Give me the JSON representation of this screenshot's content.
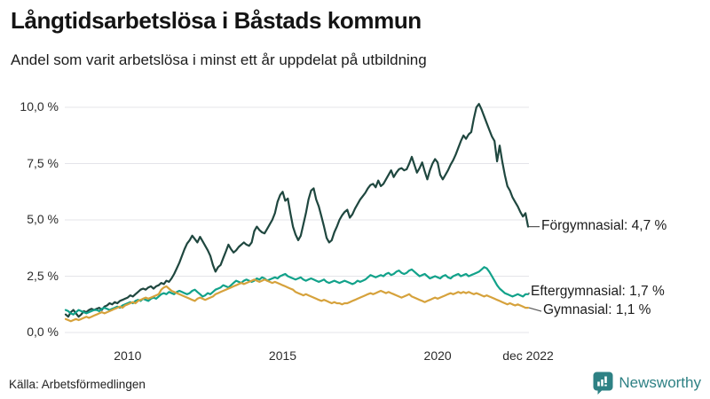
{
  "header": {
    "title": "Långtidsarbetslösa i Båstads kommun",
    "subtitle": "Andel som varit arbetslösa i minst ett år uppdelat på utbildning"
  },
  "footer": {
    "source": "Källa: Arbetsförmedlingen",
    "brand": "Newsworthy",
    "brand_color": "#2e8184"
  },
  "colors": {
    "forgymnasial": "#1f473f",
    "eftergymnasial": "#12a28a",
    "gymnasial": "#d6a23c",
    "grid": "#e4e4e9",
    "connector": "#555555"
  },
  "chart_data": {
    "type": "line",
    "unit": "%",
    "grid": true,
    "x_start": "jan 2008",
    "x_end": "dec 2022",
    "points_per_series": 180,
    "ylim": [
      0,
      10.5
    ],
    "y_axis": {
      "tick_values": [
        0,
        2.5,
        5,
        7.5,
        10
      ],
      "tick_labels": [
        "0,0 %",
        "2,5 %",
        "5,0 %",
        "7,5 %",
        "10,0 %"
      ]
    },
    "x_axis": {
      "ticks": [
        {
          "label": "2010",
          "month_index": 24
        },
        {
          "label": "2015",
          "month_index": 84
        },
        {
          "label": "2020",
          "month_index": 144
        },
        {
          "label": "dec 2022",
          "month_index": 179
        }
      ]
    },
    "series": [
      {
        "name": "Förgymnasial",
        "end_label": "Förgymnasial: 4,7 %",
        "end_value": "4,7 %",
        "color": "#1f473f",
        "values": [
          0.8,
          0.7,
          0.9,
          1.0,
          0.85,
          0.7,
          0.8,
          0.95,
          0.9,
          1.0,
          1.05,
          1.0,
          1.05,
          1.1,
          1.0,
          1.15,
          1.2,
          1.3,
          1.25,
          1.35,
          1.3,
          1.4,
          1.45,
          1.5,
          1.55,
          1.65,
          1.6,
          1.7,
          1.8,
          1.9,
          1.95,
          1.9,
          2.0,
          2.05,
          1.95,
          2.05,
          2.1,
          2.2,
          2.15,
          2.3,
          2.25,
          2.4,
          2.6,
          2.85,
          3.1,
          3.4,
          3.7,
          3.95,
          4.1,
          4.3,
          4.15,
          4.0,
          4.25,
          4.05,
          3.85,
          3.65,
          3.4,
          3.0,
          2.7,
          2.9,
          3.0,
          3.3,
          3.6,
          3.9,
          3.7,
          3.55,
          3.65,
          3.8,
          3.9,
          4.0,
          3.9,
          3.85,
          4.0,
          4.5,
          4.7,
          4.55,
          4.45,
          4.4,
          4.6,
          4.8,
          5.0,
          5.3,
          5.8,
          6.1,
          6.25,
          5.85,
          5.95,
          5.3,
          4.7,
          4.35,
          4.1,
          4.3,
          4.8,
          5.3,
          5.9,
          6.3,
          6.4,
          5.9,
          5.6,
          5.15,
          4.7,
          4.2,
          4.0,
          4.1,
          4.45,
          4.7,
          5.0,
          5.2,
          5.35,
          5.45,
          5.1,
          5.25,
          5.5,
          5.7,
          5.9,
          6.05,
          6.2,
          6.4,
          6.55,
          6.6,
          6.45,
          6.75,
          6.5,
          6.6,
          6.8,
          7.0,
          7.2,
          6.9,
          7.1,
          7.25,
          7.3,
          7.2,
          7.25,
          7.5,
          7.8,
          7.45,
          7.1,
          7.3,
          7.55,
          7.15,
          6.8,
          7.2,
          7.5,
          7.7,
          7.55,
          7.0,
          6.8,
          7.0,
          7.2,
          7.45,
          7.65,
          7.9,
          8.2,
          8.5,
          8.75,
          8.6,
          8.8,
          8.9,
          9.5,
          10.0,
          10.15,
          9.9,
          9.6,
          9.3,
          9.0,
          8.7,
          8.5,
          7.6,
          8.3,
          7.6,
          7.0,
          6.5,
          6.3,
          6.0,
          5.8,
          5.6,
          5.35,
          5.15,
          5.3,
          4.7
        ]
      },
      {
        "name": "Eftergymnasial",
        "end_label": "Eftergymnasial: 1,7 %",
        "end_value": "1,7 %",
        "color": "#12a28a",
        "values": [
          1.0,
          0.95,
          0.85,
          0.8,
          0.9,
          1.0,
          0.95,
          0.9,
          0.85,
          0.9,
          0.95,
          1.0,
          1.0,
          0.95,
          1.05,
          1.1,
          1.05,
          1.0,
          1.05,
          1.1,
          1.15,
          1.1,
          1.2,
          1.25,
          1.3,
          1.35,
          1.3,
          1.4,
          1.45,
          1.4,
          1.5,
          1.45,
          1.4,
          1.5,
          1.55,
          1.5,
          1.6,
          1.7,
          1.75,
          1.7,
          1.8,
          1.75,
          1.7,
          1.8,
          1.85,
          1.8,
          1.75,
          1.7,
          1.75,
          1.85,
          1.9,
          1.8,
          1.7,
          1.6,
          1.65,
          1.75,
          1.7,
          1.8,
          1.9,
          1.95,
          2.0,
          2.1,
          2.05,
          2.0,
          2.1,
          2.2,
          2.3,
          2.25,
          2.2,
          2.3,
          2.35,
          2.3,
          2.25,
          2.3,
          2.4,
          2.35,
          2.45,
          2.4,
          2.3,
          2.35,
          2.4,
          2.45,
          2.4,
          2.5,
          2.55,
          2.6,
          2.5,
          2.45,
          2.4,
          2.35,
          2.4,
          2.45,
          2.35,
          2.3,
          2.35,
          2.4,
          2.35,
          2.3,
          2.25,
          2.3,
          2.35,
          2.25,
          2.2,
          2.25,
          2.3,
          2.25,
          2.2,
          2.25,
          2.3,
          2.25,
          2.2,
          2.15,
          2.2,
          2.3,
          2.25,
          2.3,
          2.35,
          2.45,
          2.55,
          2.5,
          2.45,
          2.5,
          2.55,
          2.5,
          2.6,
          2.65,
          2.55,
          2.6,
          2.7,
          2.75,
          2.65,
          2.6,
          2.65,
          2.75,
          2.8,
          2.7,
          2.6,
          2.5,
          2.55,
          2.6,
          2.5,
          2.4,
          2.45,
          2.5,
          2.45,
          2.4,
          2.5,
          2.55,
          2.45,
          2.4,
          2.5,
          2.55,
          2.6,
          2.5,
          2.55,
          2.6,
          2.5,
          2.55,
          2.6,
          2.65,
          2.7,
          2.8,
          2.9,
          2.85,
          2.7,
          2.5,
          2.3,
          2.1,
          1.95,
          1.85,
          1.75,
          1.7,
          1.65,
          1.6,
          1.65,
          1.7,
          1.65,
          1.6,
          1.7,
          1.7
        ]
      },
      {
        "name": "Gymnasial",
        "end_label": "Gymnasial: 1,1 %",
        "end_value": "1,1 %",
        "color": "#d6a23c",
        "values": [
          0.6,
          0.55,
          0.5,
          0.55,
          0.6,
          0.55,
          0.6,
          0.65,
          0.7,
          0.65,
          0.7,
          0.75,
          0.8,
          0.85,
          0.9,
          0.85,
          0.9,
          0.95,
          1.0,
          1.05,
          1.1,
          1.15,
          1.1,
          1.2,
          1.25,
          1.3,
          1.35,
          1.3,
          1.4,
          1.45,
          1.5,
          1.55,
          1.5,
          1.55,
          1.6,
          1.65,
          1.7,
          1.9,
          2.0,
          2.05,
          1.95,
          1.85,
          1.8,
          1.75,
          1.7,
          1.65,
          1.6,
          1.55,
          1.5,
          1.45,
          1.4,
          1.5,
          1.55,
          1.5,
          1.45,
          1.5,
          1.55,
          1.6,
          1.7,
          1.75,
          1.8,
          1.85,
          1.9,
          1.95,
          2.0,
          2.05,
          2.1,
          2.15,
          2.2,
          2.15,
          2.2,
          2.25,
          2.3,
          2.35,
          2.3,
          2.25,
          2.3,
          2.35,
          2.3,
          2.25,
          2.2,
          2.25,
          2.2,
          2.15,
          2.1,
          2.05,
          2.0,
          1.95,
          1.9,
          1.8,
          1.75,
          1.7,
          1.65,
          1.7,
          1.65,
          1.6,
          1.55,
          1.5,
          1.45,
          1.4,
          1.45,
          1.4,
          1.35,
          1.3,
          1.35,
          1.3,
          1.3,
          1.25,
          1.3,
          1.3,
          1.35,
          1.4,
          1.45,
          1.5,
          1.55,
          1.6,
          1.65,
          1.7,
          1.75,
          1.7,
          1.75,
          1.8,
          1.85,
          1.8,
          1.75,
          1.8,
          1.75,
          1.7,
          1.65,
          1.6,
          1.55,
          1.6,
          1.65,
          1.7,
          1.6,
          1.55,
          1.5,
          1.45,
          1.4,
          1.35,
          1.4,
          1.45,
          1.5,
          1.55,
          1.5,
          1.55,
          1.6,
          1.65,
          1.7,
          1.75,
          1.7,
          1.75,
          1.8,
          1.75,
          1.8,
          1.75,
          1.8,
          1.75,
          1.7,
          1.75,
          1.7,
          1.65,
          1.6,
          1.65,
          1.6,
          1.55,
          1.5,
          1.45,
          1.4,
          1.35,
          1.3,
          1.25,
          1.3,
          1.25,
          1.2,
          1.25,
          1.2,
          1.15,
          1.1,
          1.1
        ]
      }
    ]
  }
}
